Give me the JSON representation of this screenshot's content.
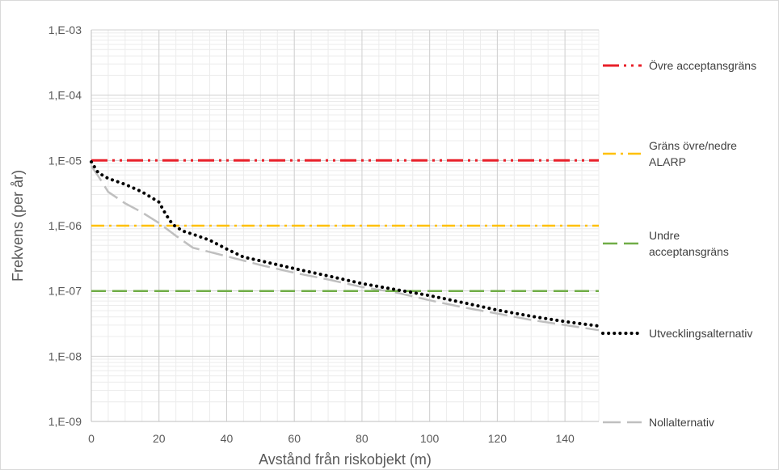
{
  "chart_data": {
    "type": "line",
    "title": "",
    "xlabel": "Avstånd från riskobjekt (m)",
    "ylabel": "Frekvens (per år)",
    "xlim": [
      0,
      150
    ],
    "ylim": [
      1e-09,
      0.001
    ],
    "y_scale": "log",
    "x_ticks": [
      0,
      20,
      40,
      60,
      80,
      100,
      120,
      140
    ],
    "x_tick_labels": [
      "0",
      "20",
      "40",
      "60",
      "80",
      "100",
      "120",
      "140"
    ],
    "y_ticks": [
      0.001,
      0.0001,
      1e-05,
      1e-06,
      1e-07,
      1e-08,
      1e-09
    ],
    "y_tick_labels": [
      "1,E-03",
      "1,E-04",
      "1,E-05",
      "1,E-06",
      "1,E-07",
      "1,E-08",
      "1,E-09"
    ],
    "grid": true,
    "legend_position": "right",
    "series": [
      {
        "name": "Övre acceptansgräns",
        "color": "#e8202a",
        "style": "dash-dot-dot",
        "x": [
          0,
          150
        ],
        "y": [
          1e-05,
          1e-05
        ]
      },
      {
        "name": "Gräns övre/nedre ALARP",
        "legend_lines": [
          "Gräns övre/nedre",
          "ALARP"
        ],
        "color": "#ffc000",
        "style": "dash-dot",
        "x": [
          0,
          150
        ],
        "y": [
          1e-06,
          1e-06
        ]
      },
      {
        "name": "Undre acceptansgräns",
        "legend_lines": [
          "Undre",
          "acceptansgräns"
        ],
        "color": "#70ad47",
        "style": "dash",
        "x": [
          0,
          150
        ],
        "y": [
          1e-07,
          1e-07
        ]
      },
      {
        "name": "Utvecklingsalternativ",
        "color": "#000000",
        "style": "dot",
        "x": [
          0,
          2,
          5,
          10,
          15,
          20,
          22,
          24,
          27,
          30,
          35,
          40,
          45,
          50,
          60,
          70,
          80,
          90,
          100,
          110,
          120,
          130,
          140,
          150
        ],
        "y": [
          9.5e-06,
          6.5e-06,
          5.3e-06,
          4.3e-06,
          3.3e-06,
          2.3e-06,
          1.5e-06,
          1.05e-06,
          8.3e-07,
          7.4e-07,
          6e-07,
          4.4e-07,
          3.3e-07,
          2.9e-07,
          2.2e-07,
          1.7e-07,
          1.3e-07,
          1.05e-07,
          8.5e-08,
          6.6e-08,
          5.1e-08,
          4.1e-08,
          3.4e-08,
          2.9e-08
        ]
      },
      {
        "name": "Nollalternativ",
        "color": "#bfbfbf",
        "style": "long-dash",
        "x": [
          0,
          2,
          5,
          10,
          15,
          20,
          25,
          30,
          40,
          50,
          60,
          70,
          80,
          90,
          100,
          110,
          120,
          130,
          140,
          150
        ],
        "y": [
          8.2e-06,
          5.8e-06,
          3.3e-06,
          2.2e-06,
          1.6e-06,
          1.1e-06,
          7e-07,
          4.6e-07,
          3.4e-07,
          2.5e-07,
          1.9e-07,
          1.5e-07,
          1.15e-07,
          9.5e-08,
          7.2e-08,
          5.6e-08,
          4.5e-08,
          3.6e-08,
          3e-08,
          2.5e-08
        ]
      }
    ]
  }
}
